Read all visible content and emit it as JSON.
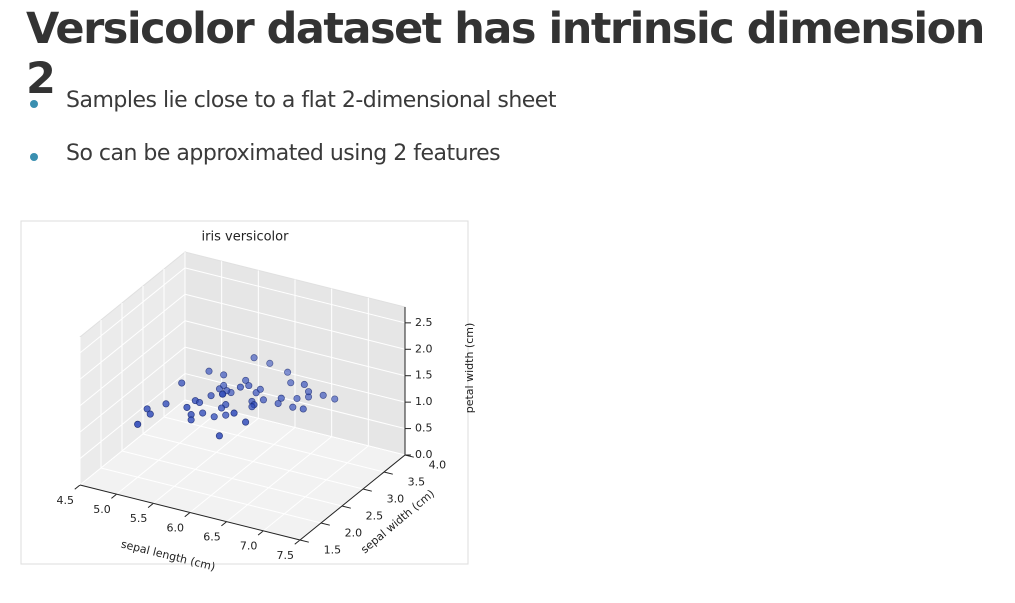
{
  "slide": {
    "title": "Versicolor dataset has intrinsic dimension 2",
    "bullets": [
      "Samples lie close to a flat 2-dimensional sheet",
      "So can be approximated using 2 features"
    ]
  },
  "chart_data": {
    "type": "scatter3d",
    "title": "iris versicolor",
    "xlabel": "sepal length (cm)",
    "ylabel": "sepal width (cm)",
    "zlabel": "petal width (cm)",
    "color": "#2a46b8",
    "xlim": [
      4.5,
      7.5
    ],
    "ylim": [
      1.5,
      4.0
    ],
    "zlim": [
      0,
      2.8
    ],
    "xticks": [
      4.5,
      {
        "value": 5,
        "label": "5.0"
      },
      5.5,
      {
        "value": 6,
        "label": "6.0"
      },
      6.5,
      {
        "value": 7,
        "label": "7.0"
      },
      7.5
    ],
    "yticks": [
      1.5,
      {
        "value": 2,
        "label": "2.0"
      },
      2.5,
      {
        "value": 3,
        "label": "3.0"
      },
      3.5,
      {
        "value": 4,
        "label": "4.0"
      }
    ],
    "zticks": [
      {
        "value": 0,
        "label": "0.0"
      },
      0.5,
      {
        "value": 1,
        "label": "1.0"
      },
      1.5,
      {
        "value": 2,
        "label": "2.0"
      },
      2.5
    ],
    "grid": true,
    "x": [
      7.0,
      6.4,
      6.9,
      5.5,
      6.5,
      5.7,
      6.3,
      4.9,
      6.6,
      5.2,
      5.0,
      5.9,
      6.0,
      6.1,
      5.6,
      6.7,
      5.6,
      5.8,
      6.2,
      5.6,
      5.9,
      6.1,
      6.3,
      6.1,
      6.4,
      6.6,
      6.8,
      6.7,
      6.0,
      5.7,
      5.5,
      5.5,
      5.8,
      6.0,
      5.4,
      6.0,
      6.7,
      6.3,
      5.6,
      5.5,
      5.5,
      6.1,
      5.8,
      5.0,
      5.6,
      5.7,
      5.7,
      6.2,
      5.1,
      5.7
    ],
    "y": [
      3.2,
      3.2,
      3.1,
      2.3,
      2.8,
      2.8,
      3.3,
      2.4,
      2.9,
      2.7,
      2.0,
      3.0,
      2.2,
      2.9,
      2.9,
      3.1,
      3.0,
      2.7,
      2.2,
      2.5,
      3.2,
      2.8,
      2.5,
      2.8,
      2.9,
      3.0,
      2.8,
      3.0,
      2.9,
      2.6,
      2.4,
      2.4,
      2.7,
      2.7,
      3.0,
      3.4,
      3.1,
      2.3,
      3.0,
      2.5,
      2.6,
      3.0,
      2.6,
      2.3,
      2.7,
      3.0,
      2.9,
      2.9,
      2.5,
      2.8
    ],
    "z": [
      1.4,
      1.5,
      1.5,
      1.3,
      1.5,
      1.3,
      1.6,
      1.0,
      1.3,
      1.4,
      1.0,
      1.5,
      1.0,
      1.4,
      1.3,
      1.4,
      1.5,
      1.0,
      1.5,
      1.1,
      1.8,
      1.3,
      1.5,
      1.2,
      1.3,
      1.4,
      1.4,
      1.7,
      1.5,
      1.0,
      1.1,
      1.0,
      1.2,
      1.6,
      1.5,
      1.6,
      1.5,
      1.3,
      1.3,
      1.3,
      1.2,
      1.4,
      1.2,
      1.0,
      1.3,
      1.2,
      1.3,
      1.3,
      1.1,
      1.3
    ]
  }
}
